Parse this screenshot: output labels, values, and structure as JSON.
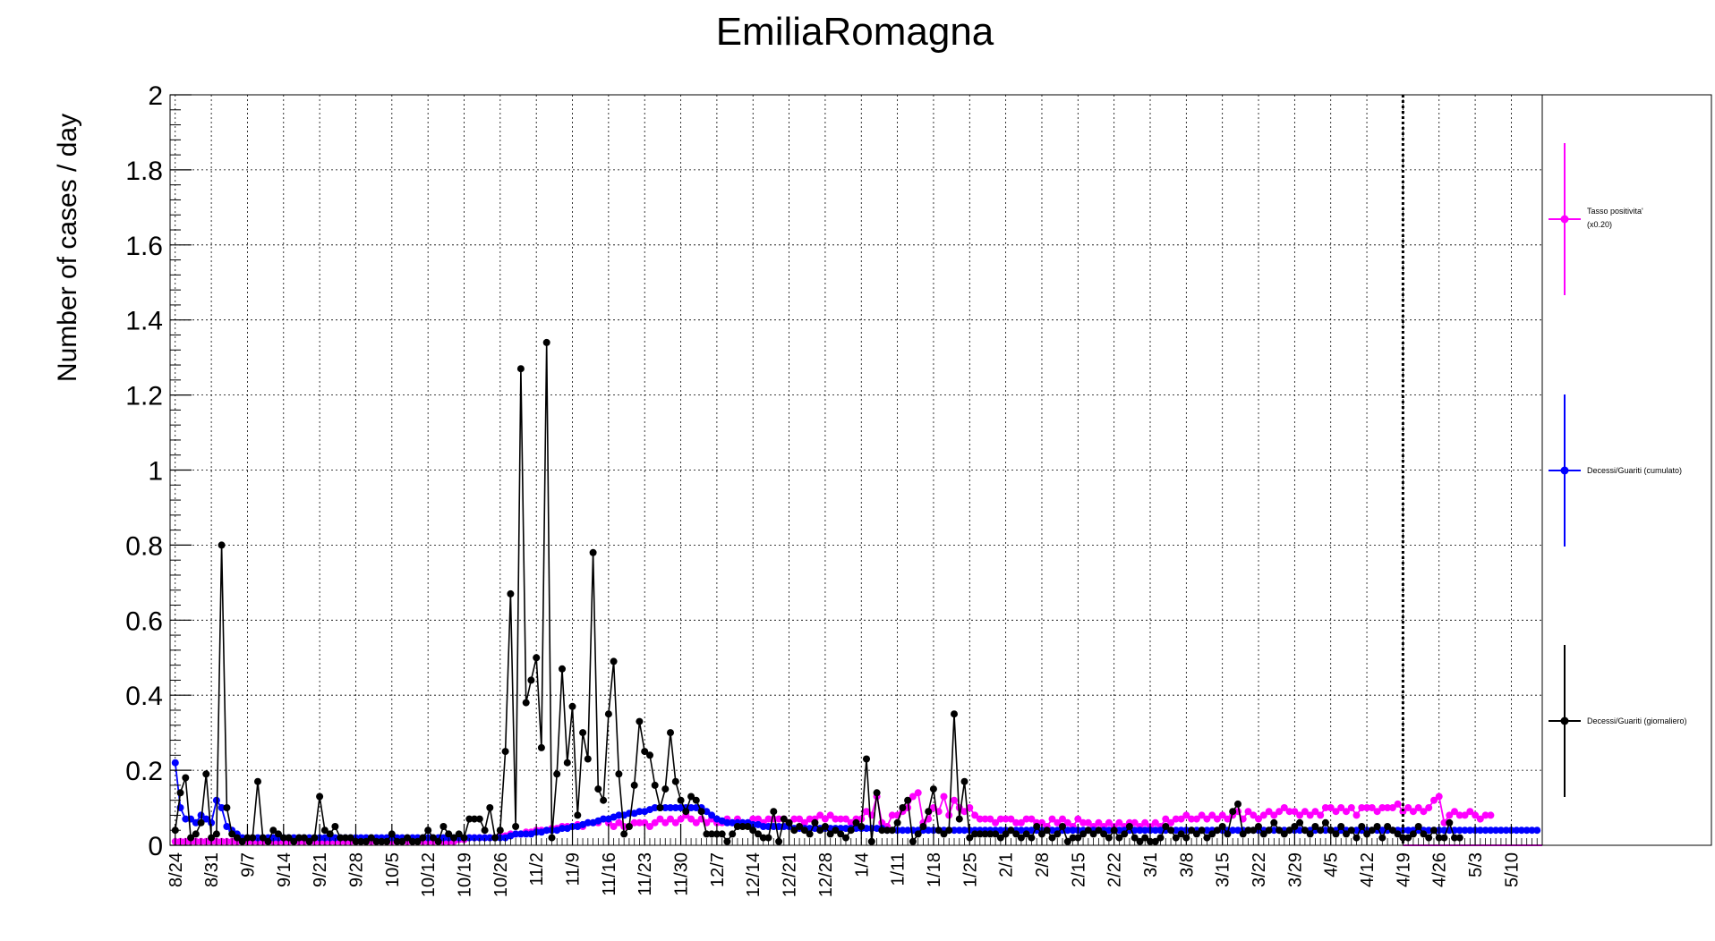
{
  "chart_data": {
    "type": "line",
    "title": "EmiliaRomagna",
    "ylabel": "Number of cases / day",
    "xlabel": "",
    "ylim": [
      0,
      2
    ],
    "y_ticks": [
      "0",
      "0.2",
      "0.4",
      "0.6",
      "0.8",
      "1",
      "1.2",
      "1.4",
      "1.6",
      "1.8",
      "2"
    ],
    "x_start_label": "8/24",
    "x_tick_labels": [
      "8/24",
      "8/31",
      "9/7",
      "9/14",
      "9/21",
      "9/28",
      "10/5",
      "10/12",
      "10/19",
      "10/26",
      "11/2",
      "11/9",
      "11/16",
      "11/23",
      "11/30",
      "12/7",
      "12/14",
      "12/21",
      "12/28",
      "1/4",
      "1/11",
      "1/18",
      "1/25",
      "2/1",
      "2/8",
      "2/15",
      "2/22",
      "3/1",
      "3/8",
      "3/15",
      "3/22",
      "3/29",
      "4/5",
      "4/12",
      "4/19",
      "4/26",
      "5/3",
      "5/10"
    ],
    "x_range_days": [
      -1,
      265
    ],
    "marker_day": 238,
    "grid": true,
    "legend_placement": "right panel",
    "colors": {
      "positivity": "#ff00ff",
      "cumulative": "#0000ff",
      "daily": "#000000"
    },
    "series": [
      {
        "key": "daily",
        "name": "Decessi/Guariti (giornaliero)",
        "values": [
          0.04,
          0.14,
          0.18,
          0.02,
          0.03,
          0.06,
          0.19,
          0.02,
          0.03,
          0.8,
          0.1,
          0.03,
          0.02,
          0.01,
          0.02,
          0.02,
          0.17,
          0.02,
          0.01,
          0.04,
          0.03,
          0.02,
          0.02,
          0.01,
          0.02,
          0.02,
          0.01,
          0.02,
          0.13,
          0.04,
          0.03,
          0.05,
          0.02,
          0.02,
          0.02,
          0.01,
          0.01,
          0.01,
          0.02,
          0.01,
          0.01,
          0.01,
          0.03,
          0.01,
          0.01,
          0.02,
          0.01,
          0.01,
          0.02,
          0.04,
          0.02,
          0.01,
          0.05,
          0.03,
          0.02,
          0.03,
          0.02,
          0.07,
          0.07,
          0.07,
          0.04,
          0.1,
          0.02,
          0.04,
          0.25,
          0.67,
          0.05,
          1.27,
          0.38,
          0.44,
          0.5,
          0.26,
          1.34,
          0.02,
          0.19,
          0.47,
          0.22,
          0.37,
          0.08,
          0.3,
          0.23,
          0.78,
          0.15,
          0.12,
          0.35,
          0.49,
          0.19,
          0.03,
          0.05,
          0.16,
          0.33,
          0.25,
          0.24,
          0.16,
          0.1,
          0.15,
          0.3,
          0.17,
          0.12,
          0.09,
          0.13,
          0.12,
          0.09,
          0.03,
          0.03,
          0.03,
          0.03,
          0.01,
          0.03,
          0.05,
          0.05,
          0.05,
          0.04,
          0.03,
          0.02,
          0.02,
          0.09,
          0.01,
          0.07,
          0.06,
          0.04,
          0.05,
          0.04,
          0.03,
          0.06,
          0.04,
          0.05,
          0.03,
          0.04,
          0.03,
          0.02,
          0.04,
          0.06,
          0.05,
          0.23,
          0.01,
          0.14,
          0.04,
          0.04,
          0.04,
          0.06,
          0.1,
          0.12,
          0.01,
          0.03,
          0.05,
          0.09,
          0.15,
          0.04,
          0.03,
          0.04,
          0.35,
          0.07,
          0.17,
          0.02,
          0.03,
          0.03,
          0.03,
          0.03,
          0.03,
          0.02,
          0.03,
          0.04,
          0.03,
          0.02,
          0.03,
          0.02,
          0.05,
          0.03,
          0.04,
          0.02,
          0.03,
          0.05,
          0.01,
          0.02,
          0.02,
          0.03,
          0.04,
          0.03,
          0.04,
          0.03,
          0.02,
          0.04,
          0.02,
          0.03,
          0.05,
          0.02,
          0.01,
          0.02,
          0.01,
          0.01,
          0.02,
          0.05,
          0.04,
          0.02,
          0.03,
          0.02,
          0.04,
          0.03,
          0.04,
          0.02,
          0.03,
          0.04,
          0.05,
          0.03,
          0.09,
          0.11,
          0.03,
          0.04,
          0.04,
          0.05,
          0.03,
          0.04,
          0.06,
          0.04,
          0.03,
          0.04,
          0.05,
          0.06,
          0.04,
          0.03,
          0.05,
          0.04,
          0.06,
          0.04,
          0.03,
          0.05,
          0.03,
          0.04,
          0.02,
          0.05,
          0.03,
          0.04,
          0.05,
          0.02,
          0.05,
          0.04,
          0.03,
          0.02,
          0.02,
          0.03,
          0.05,
          0.03,
          0.02,
          0.04,
          0.02,
          0.02,
          0.06,
          0.02,
          0.02
        ]
      },
      {
        "key": "cumulative",
        "name": "Decessi/Guariti (cumulato)",
        "values": [
          0.22,
          0.1,
          0.07,
          0.07,
          0.06,
          0.08,
          0.07,
          0.06,
          0.12,
          0.1,
          0.05,
          0.04,
          0.03,
          0.02,
          0.02,
          0.02,
          0.02,
          0.02,
          0.02,
          0.02,
          0.02,
          0.02,
          0.02,
          0.02,
          0.02,
          0.02,
          0.02,
          0.02,
          0.02,
          0.02,
          0.02,
          0.02,
          0.02,
          0.02,
          0.02,
          0.02,
          0.02,
          0.02,
          0.02,
          0.02,
          0.02,
          0.02,
          0.02,
          0.02,
          0.02,
          0.02,
          0.02,
          0.02,
          0.02,
          0.02,
          0.02,
          0.02,
          0.02,
          0.02,
          0.02,
          0.02,
          0.02,
          0.02,
          0.02,
          0.02,
          0.02,
          0.02,
          0.02,
          0.02,
          0.02,
          0.025,
          0.03,
          0.03,
          0.03,
          0.03,
          0.035,
          0.035,
          0.04,
          0.04,
          0.04,
          0.045,
          0.045,
          0.05,
          0.05,
          0.055,
          0.06,
          0.06,
          0.065,
          0.07,
          0.07,
          0.075,
          0.08,
          0.08,
          0.085,
          0.085,
          0.09,
          0.09,
          0.095,
          0.1,
          0.1,
          0.1,
          0.1,
          0.1,
          0.1,
          0.1,
          0.1,
          0.1,
          0.1,
          0.09,
          0.08,
          0.07,
          0.065,
          0.06,
          0.06,
          0.06,
          0.06,
          0.06,
          0.055,
          0.055,
          0.05,
          0.05,
          0.05,
          0.05,
          0.05,
          0.05,
          0.045,
          0.045,
          0.045,
          0.045,
          0.045,
          0.045,
          0.045,
          0.045,
          0.045,
          0.045,
          0.045,
          0.045,
          0.045,
          0.045,
          0.045,
          0.045,
          0.045,
          0.045,
          0.04,
          0.04,
          0.04,
          0.04,
          0.04,
          0.04,
          0.04,
          0.04,
          0.04,
          0.04,
          0.04,
          0.04,
          0.04,
          0.04,
          0.04,
          0.04,
          0.04,
          0.04,
          0.04,
          0.04,
          0.04,
          0.04,
          0.04,
          0.04,
          0.04,
          0.04,
          0.04,
          0.04,
          0.04,
          0.04,
          0.04,
          0.04,
          0.04,
          0.04,
          0.04,
          0.04,
          0.04,
          0.04,
          0.04,
          0.04,
          0.04,
          0.04,
          0.04,
          0.04,
          0.04,
          0.04,
          0.04,
          0.04,
          0.04,
          0.04,
          0.04,
          0.04,
          0.04,
          0.04,
          0.04,
          0.04,
          0.04,
          0.04,
          0.04,
          0.04,
          0.04,
          0.04,
          0.04,
          0.04,
          0.04,
          0.04,
          0.04,
          0.04,
          0.04,
          0.04,
          0.04,
          0.04,
          0.04,
          0.04,
          0.04,
          0.04,
          0.04,
          0.04,
          0.04,
          0.04,
          0.04,
          0.04,
          0.04,
          0.04,
          0.04,
          0.04,
          0.04,
          0.04,
          0.04,
          0.04,
          0.04,
          0.04,
          0.04,
          0.04,
          0.04,
          0.04,
          0.04,
          0.04,
          0.04,
          0.04,
          0.04,
          0.04,
          0.04,
          0.04,
          0.04,
          0.04,
          0.04,
          0.04,
          0.04,
          0.04,
          0.04,
          0.04,
          0.04,
          0.04,
          0.04,
          0.04,
          0.04,
          0.04,
          0.04,
          0.04,
          0.04,
          0.04,
          0.04,
          0.04,
          0.04,
          0.04,
          0.04
        ]
      },
      {
        "key": "positivity",
        "name": "Tasso positivita' (x0.20)",
        "values": [
          0.01,
          0.01,
          0.01,
          0.01,
          0.01,
          0.01,
          0.01,
          0.01,
          0.01,
          0.01,
          0.01,
          0.01,
          0.01,
          0.01,
          0.01,
          0.01,
          0.01,
          0.01,
          0.01,
          0.01,
          0.01,
          0.01,
          0.01,
          0.01,
          0.01,
          0.01,
          0.01,
          0.01,
          0.01,
          0.01,
          0.01,
          0.01,
          0.01,
          0.01,
          0.01,
          0.01,
          0.01,
          0.01,
          0.01,
          0.01,
          0.01,
          0.01,
          0.01,
          0.01,
          0.01,
          0.01,
          0.01,
          0.01,
          0.01,
          0.01,
          0.01,
          0.01,
          0.01,
          0.01,
          0.01,
          0.015,
          0.015,
          0.02,
          0.02,
          0.02,
          0.02,
          0.02,
          0.02,
          0.025,
          0.025,
          0.03,
          0.03,
          0.03,
          0.035,
          0.035,
          0.04,
          0.04,
          0.04,
          0.045,
          0.045,
          0.05,
          0.05,
          0.05,
          0.055,
          0.05,
          0.06,
          0.06,
          0.06,
          0.07,
          0.06,
          0.05,
          0.06,
          0.05,
          0.05,
          0.06,
          0.06,
          0.06,
          0.05,
          0.06,
          0.07,
          0.06,
          0.07,
          0.06,
          0.07,
          0.08,
          0.07,
          0.06,
          0.07,
          0.06,
          0.07,
          0.06,
          0.06,
          0.07,
          0.06,
          0.07,
          0.06,
          0.06,
          0.07,
          0.07,
          0.06,
          0.07,
          0.07,
          0.07,
          0.07,
          0.06,
          0.07,
          0.07,
          0.06,
          0.07,
          0.07,
          0.08,
          0.07,
          0.08,
          0.07,
          0.07,
          0.07,
          0.06,
          0.07,
          0.07,
          0.09,
          0.08,
          0.13,
          0.06,
          0.05,
          0.08,
          0.08,
          0.09,
          0.1,
          0.13,
          0.14,
          0.06,
          0.07,
          0.1,
          0.09,
          0.13,
          0.08,
          0.12,
          0.1,
          0.09,
          0.1,
          0.08,
          0.07,
          0.07,
          0.07,
          0.06,
          0.07,
          0.07,
          0.07,
          0.06,
          0.06,
          0.07,
          0.07,
          0.06,
          0.06,
          0.05,
          0.07,
          0.06,
          0.07,
          0.06,
          0.05,
          0.07,
          0.06,
          0.06,
          0.05,
          0.06,
          0.05,
          0.06,
          0.05,
          0.06,
          0.05,
          0.06,
          0.06,
          0.05,
          0.06,
          0.05,
          0.06,
          0.05,
          0.07,
          0.06,
          0.07,
          0.07,
          0.08,
          0.07,
          0.07,
          0.08,
          0.07,
          0.08,
          0.07,
          0.08,
          0.07,
          0.08,
          0.09,
          0.07,
          0.09,
          0.08,
          0.07,
          0.08,
          0.09,
          0.08,
          0.09,
          0.1,
          0.09,
          0.09,
          0.08,
          0.09,
          0.08,
          0.09,
          0.08,
          0.1,
          0.1,
          0.09,
          0.1,
          0.09,
          0.1,
          0.08,
          0.1,
          0.1,
          0.1,
          0.09,
          0.1,
          0.1,
          0.1,
          0.11,
          0.09,
          0.1,
          0.09,
          0.1,
          0.09,
          0.1,
          0.12,
          0.13,
          0.06,
          0.08,
          0.09,
          0.08,
          0.08,
          0.09,
          0.08,
          0.07,
          0.08,
          0.08
        ]
      }
    ]
  }
}
